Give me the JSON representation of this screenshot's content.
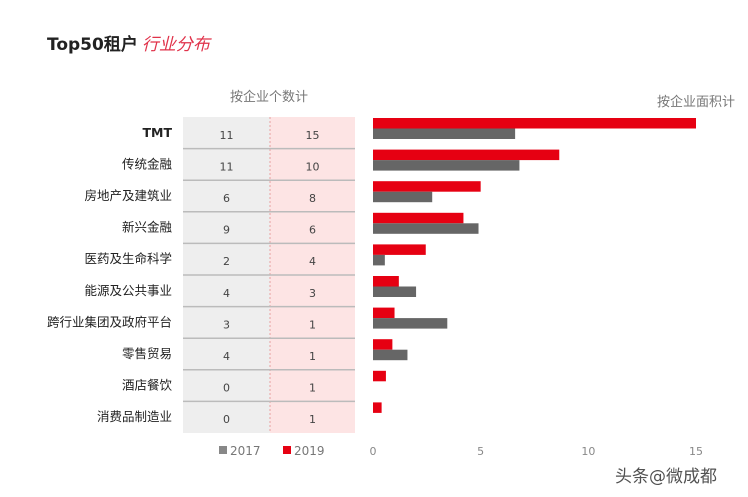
{
  "title": {
    "prefix": "Top50租户",
    "handwritten": "行业分布"
  },
  "watermark": "头条@微成都",
  "colors": {
    "y2017": "#666666",
    "y2019": "#e60012",
    "table2017": "#eeeeee",
    "table2019": "#fde4e4"
  },
  "chart_data": [
    {
      "type": "table",
      "title": "按企业个数计",
      "columns": [
        "2017",
        "2019"
      ],
      "categories": [
        "TMT",
        "传统金融",
        "房地产及建筑业",
        "新兴金融",
        "医药及生命科学",
        "能源及公共事业",
        "跨行业集团及政府平台",
        "零售贸易",
        "酒店餐饮",
        "消费品制造业"
      ],
      "series": [
        {
          "name": "2017",
          "values": [
            11,
            11,
            6,
            9,
            2,
            4,
            3,
            4,
            0,
            0
          ]
        },
        {
          "name": "2019",
          "values": [
            15,
            10,
            8,
            6,
            4,
            3,
            1,
            1,
            1,
            1
          ]
        }
      ]
    },
    {
      "type": "bar",
      "orientation": "horizontal",
      "title": "按企业面积计",
      "categories": [
        "TMT",
        "传统金融",
        "房地产及建筑业",
        "新兴金融",
        "医药及生命科学",
        "能源及公共事业",
        "跨行业集团及政府平台",
        "零售贸易",
        "酒店餐饮",
        "消费品制造业"
      ],
      "series": [
        {
          "name": "2017",
          "values": [
            6.6,
            6.8,
            2.75,
            4.9,
            0.55,
            2.0,
            3.45,
            1.6,
            0,
            0
          ]
        },
        {
          "name": "2019",
          "values": [
            15.0,
            8.65,
            5.0,
            4.2,
            2.45,
            1.2,
            1.0,
            0.9,
            0.6,
            0.4
          ]
        }
      ],
      "xlim": [
        0,
        15
      ],
      "xticks": [
        "0",
        "5",
        "10",
        "15"
      ],
      "grid": false,
      "legend": {
        "placement": "bottom",
        "entries": [
          "2017",
          "2019"
        ]
      }
    }
  ]
}
